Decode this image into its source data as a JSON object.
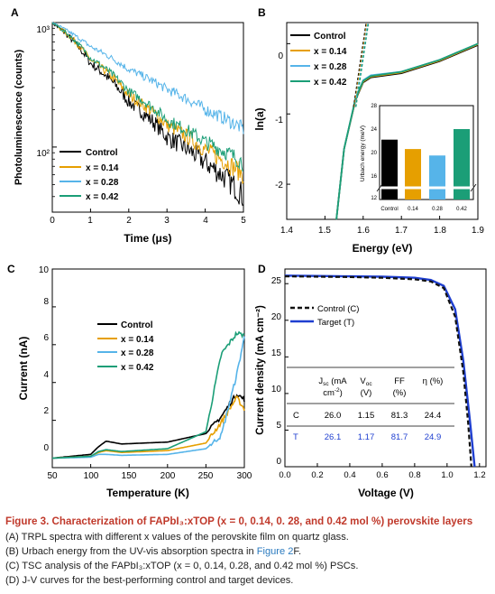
{
  "colors": {
    "control": "#000000",
    "x014": "#e69f00",
    "x028": "#56b4e9",
    "x042": "#1b9e77",
    "control_jv": "#111111",
    "target_jv": "#1f3fd0",
    "caption_title": "#c0392b",
    "link": "#2b7bbf"
  },
  "panels": {
    "A": {
      "letter": "A",
      "xlabel": "Time (μs)",
      "ylabel": "Photoluminescence (counts)",
      "xticks": [
        "0",
        "1",
        "2",
        "3",
        "4",
        "5"
      ],
      "yticks": [
        "10³",
        "10²"
      ],
      "legend": [
        "Control",
        "x = 0.14",
        "x = 0.28",
        "x = 0.42"
      ]
    },
    "B": {
      "letter": "B",
      "xlabel": "Energy (eV)",
      "ylabel": "ln(a)",
      "xticks": [
        "1.4",
        "1.5",
        "1.6",
        "1.7",
        "1.8",
        "1.9"
      ],
      "yticks": [
        "0",
        "-1",
        "-2"
      ],
      "legend": [
        "Control",
        "x = 0.14",
        "x = 0.28",
        "x = 0.42"
      ],
      "inset": {
        "ylabel": "Urbach energy (meV)",
        "yticks": [
          "28",
          "24",
          "20",
          "16",
          "12"
        ],
        "categories": [
          "Control",
          "0.14",
          "0.28",
          "0.42"
        ]
      }
    },
    "C": {
      "letter": "C",
      "xlabel": "Temperature (K)",
      "ylabel": "Current (nA)",
      "xticks": [
        "50",
        "100",
        "150",
        "200",
        "250",
        "300"
      ],
      "yticks": [
        "0",
        "2",
        "4",
        "6",
        "8",
        "10"
      ],
      "legend": [
        "Control",
        "x = 0.14",
        "x = 0.28",
        "x = 0.42"
      ]
    },
    "D": {
      "letter": "D",
      "xlabel": "Voltage (V)",
      "ylabel": "Current density (mA cm⁻²)",
      "xticks": [
        "0.0",
        "0.2",
        "0.4",
        "0.6",
        "0.8",
        "1.0",
        "1.2"
      ],
      "yticks": [
        "0",
        "5",
        "10",
        "15",
        "20",
        "25"
      ],
      "legend": [
        "Control (C)",
        "Target (T)"
      ],
      "table": {
        "headers": [
          "Jsc (mA cm⁻²)",
          "Voc (V)",
          "FF (%)",
          "η (%)"
        ],
        "rows": [
          {
            "label": "C",
            "values": [
              "26.0",
              "1.15",
              "81.3",
              "24.4"
            ]
          },
          {
            "label": "T",
            "values": [
              "26.1",
              "1.17",
              "81.7",
              "24.9"
            ]
          }
        ]
      }
    }
  },
  "chart_data": [
    {
      "type": "line",
      "panel": "A",
      "xlabel": "Time (μs)",
      "ylabel": "Photoluminescence (counts)",
      "xlim": [
        0,
        5
      ],
      "ylim": [
        30,
        1000
      ],
      "yscale": "log",
      "series": [
        {
          "name": "Control",
          "x": [
            0,
            1,
            2,
            3,
            4,
            5
          ],
          "y": [
            1000,
            470,
            230,
            120,
            75,
            40
          ]
        },
        {
          "name": "x = 0.14",
          "x": [
            0,
            1,
            2,
            3,
            4,
            5
          ],
          "y": [
            1000,
            500,
            260,
            150,
            95,
            60
          ]
        },
        {
          "name": "x = 0.28",
          "x": [
            0,
            1,
            2,
            3,
            4,
            5
          ],
          "y": [
            1000,
            640,
            420,
            290,
            200,
            140
          ]
        },
        {
          "name": "x = 0.42",
          "x": [
            0,
            1,
            2,
            3,
            4,
            5
          ],
          "y": [
            1000,
            520,
            280,
            165,
            110,
            75
          ]
        }
      ]
    },
    {
      "type": "line",
      "panel": "B",
      "xlabel": "Energy (eV)",
      "ylabel": "ln(a)",
      "xlim": [
        1.4,
        1.9
      ],
      "ylim": [
        -2.5,
        0.3
      ],
      "series": [
        {
          "name": "Control",
          "x": [
            1.53,
            1.55,
            1.58,
            1.6,
            1.62,
            1.7,
            1.8,
            1.9
          ],
          "y": [
            -2.5,
            -1.5,
            -0.8,
            -0.55,
            -0.48,
            -0.42,
            -0.25,
            -0.02
          ]
        },
        {
          "name": "x = 0.14",
          "x": [
            1.53,
            1.55,
            1.58,
            1.6,
            1.62,
            1.7,
            1.8,
            1.9
          ],
          "y": [
            -2.5,
            -1.5,
            -0.79,
            -0.54,
            -0.47,
            -0.41,
            -0.24,
            -0.01
          ]
        },
        {
          "name": "x = 0.28",
          "x": [
            1.53,
            1.55,
            1.58,
            1.6,
            1.62,
            1.7,
            1.8,
            1.9
          ],
          "y": [
            -2.5,
            -1.5,
            -0.78,
            -0.52,
            -0.45,
            -0.4,
            -0.23,
            0.0
          ]
        },
        {
          "name": "x = 0.42",
          "x": [
            1.53,
            1.55,
            1.58,
            1.6,
            1.62,
            1.7,
            1.8,
            1.9
          ],
          "y": [
            -2.5,
            -1.5,
            -0.78,
            -0.53,
            -0.46,
            -0.4,
            -0.23,
            0.0
          ]
        }
      ]
    },
    {
      "type": "bar",
      "panel": "B-inset",
      "ylabel": "Urbach energy (meV)",
      "categories": [
        "Control",
        "0.14",
        "0.28",
        "0.42"
      ],
      "values": [
        22.2,
        20.6,
        19.5,
        24
      ],
      "ylim": [
        12,
        28
      ]
    },
    {
      "type": "line",
      "panel": "C",
      "xlabel": "Temperature (K)",
      "ylabel": "Current (nA)",
      "xlim": [
        50,
        300
      ],
      "ylim": [
        -0.5,
        10
      ],
      "series": [
        {
          "name": "Control",
          "x": [
            50,
            100,
            110,
            120,
            140,
            200,
            250,
            270,
            290,
            300
          ],
          "y": [
            0,
            0.2,
            0.6,
            0.9,
            0.75,
            0.85,
            1.3,
            2.2,
            3.4,
            3.1
          ]
        },
        {
          "name": "x = 0.14",
          "x": [
            50,
            100,
            110,
            120,
            140,
            200,
            250,
            270,
            290,
            300
          ],
          "y": [
            0,
            0.1,
            0.3,
            0.4,
            0.3,
            0.4,
            0.8,
            1.9,
            3.2,
            2.6
          ]
        },
        {
          "name": "x = 0.28",
          "x": [
            50,
            100,
            110,
            120,
            140,
            200,
            250,
            270,
            290,
            300
          ],
          "y": [
            0,
            0.05,
            0.2,
            0.2,
            0.15,
            0.2,
            0.5,
            1.2,
            4.4,
            6.4
          ]
        },
        {
          "name": "x = 0.42",
          "x": [
            50,
            100,
            110,
            120,
            140,
            200,
            250,
            270,
            290,
            300
          ],
          "y": [
            0,
            0.1,
            0.35,
            0.45,
            0.35,
            0.5,
            1.4,
            5.5,
            6.6,
            6.5
          ]
        }
      ]
    },
    {
      "type": "line",
      "panel": "D",
      "xlabel": "Voltage (V)",
      "ylabel": "Current density (mA cm⁻²)",
      "xlim": [
        0,
        1.2
      ],
      "ylim": [
        0,
        27
      ],
      "series": [
        {
          "name": "Control (C)",
          "x": [
            0,
            0.2,
            0.4,
            0.6,
            0.8,
            0.9,
            0.98,
            1.05,
            1.1,
            1.13,
            1.15
          ],
          "y": [
            26,
            25.95,
            25.9,
            25.8,
            25.6,
            25.3,
            24.4,
            20.5,
            13,
            6,
            0
          ]
        },
        {
          "name": "Target (T)",
          "x": [
            0,
            0.2,
            0.4,
            0.6,
            0.8,
            0.9,
            0.98,
            1.05,
            1.1,
            1.14,
            1.17
          ],
          "y": [
            26.1,
            26.05,
            26,
            25.95,
            25.8,
            25.5,
            24.7,
            21.5,
            14.5,
            6.5,
            0
          ]
        }
      ]
    }
  ],
  "caption": {
    "title": "Figure 3. Characterization of FAPbI₃:xTOP (x = 0, 0.14, 0. 28, and 0.42 mol %) perovskite layers",
    "a": "(A) TRPL spectra with different x values of the perovskite film on quartz glass.",
    "b_pre": "(B) Urbach energy from the UV-vis absorption spectra in ",
    "b_link": "Figure 2",
    "b_post": "F.",
    "c": "(C) TSC analysis of the FAPbI₃:xTOP (x = 0, 0.14, 0.28, and 0.42 mol %) PSCs.",
    "d": "(D) J-V curves for the best-performing control and target devices."
  }
}
